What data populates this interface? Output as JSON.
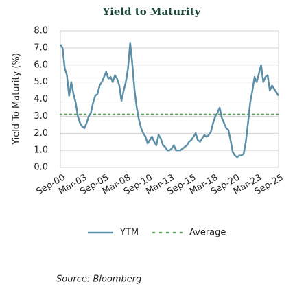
{
  "chart_data": {
    "type": "line",
    "title": "Yield to Maturity",
    "ylabel": "Yield To Maturity (%)",
    "source": "Source: Bloomberg",
    "categories": [
      "Sep-00",
      null,
      null,
      null,
      null,
      null,
      null,
      null,
      null,
      null,
      "Mar-03",
      null,
      null,
      null,
      null,
      null,
      null,
      null,
      null,
      null,
      "Sep-05",
      null,
      null,
      null,
      null,
      null,
      null,
      null,
      null,
      null,
      "Mar-08",
      null,
      null,
      null,
      null,
      null,
      null,
      null,
      null,
      null,
      "Sep-10",
      null,
      null,
      null,
      null,
      null,
      null,
      null,
      null,
      null,
      "Mar-13",
      null,
      null,
      null,
      null,
      null,
      null,
      null,
      null,
      null,
      "Sep-15",
      null,
      null,
      null,
      null,
      null,
      null,
      null,
      null,
      null,
      "Mar-18",
      null,
      null,
      null,
      null,
      null,
      null,
      null,
      null,
      null,
      "Sep-20",
      null,
      null,
      null,
      null,
      null,
      null,
      null,
      null,
      null,
      "Mar-23",
      null,
      null,
      null,
      null,
      null,
      null,
      null,
      null,
      null,
      "Sep-25"
    ],
    "series": [
      {
        "name": "YTM",
        "color": "#5b8fa8",
        "values": [
          7.2,
          7.0,
          5.8,
          5.4,
          4.2,
          5.0,
          4.3,
          3.8,
          3.0,
          2.6,
          2.4,
          2.3,
          2.6,
          3.0,
          3.2,
          3.8,
          4.2,
          4.3,
          4.8,
          5.0,
          5.3,
          5.6,
          5.2,
          5.3,
          5.0,
          5.4,
          5.2,
          4.8,
          3.9,
          4.5,
          5.0,
          5.8,
          7.3,
          6.0,
          4.5,
          3.5,
          2.8,
          2.3,
          2.0,
          1.8,
          1.4,
          1.6,
          1.8,
          1.5,
          1.3,
          1.9,
          1.7,
          1.3,
          1.2,
          1.0,
          1.0,
          1.1,
          1.3,
          1.0,
          1.0,
          1.0,
          1.1,
          1.2,
          1.3,
          1.5,
          1.6,
          1.8,
          2.0,
          1.6,
          1.5,
          1.7,
          1.9,
          1.8,
          1.9,
          2.1,
          2.6,
          3.0,
          3.2,
          3.5,
          2.9,
          2.6,
          2.3,
          2.2,
          1.6,
          0.9,
          0.7,
          0.6,
          0.7,
          0.7,
          0.8,
          1.5,
          2.6,
          3.8,
          4.5,
          5.3,
          5.0,
          5.5,
          6.0,
          5.0,
          5.3,
          5.4,
          4.5,
          4.8,
          4.6,
          4.4,
          4.2
        ]
      }
    ],
    "average": {
      "name": "Average",
      "value": 3.1,
      "color": "#5aa05a"
    },
    "ylim": [
      0,
      8
    ],
    "yticks": [
      {
        "value": 0,
        "label": "0.0"
      },
      {
        "value": 1,
        "label": "1.0"
      },
      {
        "value": 2,
        "label": "2.0"
      },
      {
        "value": 3,
        "label": "3.0"
      },
      {
        "value": 4,
        "label": "4.0"
      },
      {
        "value": 5,
        "label": "5.0"
      },
      {
        "value": 6,
        "label": "6.0"
      },
      {
        "value": 7,
        "label": "7.0"
      },
      {
        "value": 8,
        "label": "8.0"
      }
    ],
    "grid": true
  }
}
